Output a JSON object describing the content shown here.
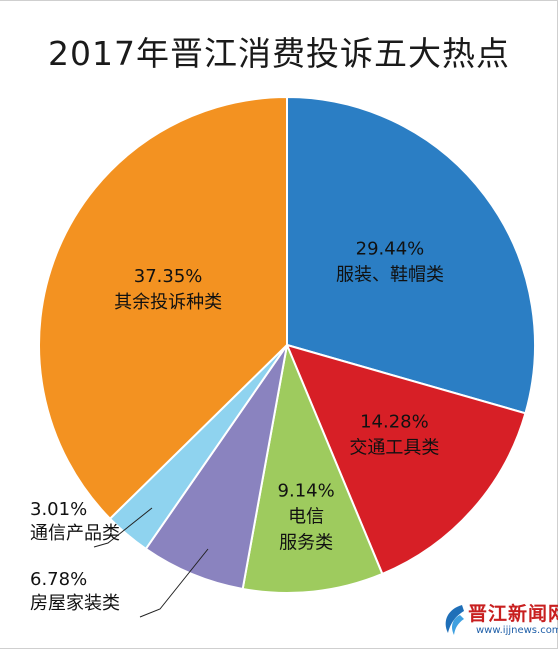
{
  "chart_data": {
    "type": "pie",
    "title": "2017年晋江消费投诉五大热点",
    "slices": [
      {
        "percent_label": "29.44%",
        "name_lines": [
          "服装、鞋帽类"
        ],
        "value": 29.44,
        "color": "#2b7ec4",
        "label_mode": "inside"
      },
      {
        "percent_label": "14.28%",
        "name_lines": [
          "交通工具类"
        ],
        "value": 14.28,
        "color": "#d71f26",
        "label_mode": "inside"
      },
      {
        "percent_label": "9.14%",
        "name_lines": [
          "电信",
          "服务类"
        ],
        "value": 9.14,
        "color": "#9ecb5e",
        "label_mode": "inside"
      },
      {
        "percent_label": "6.78%",
        "name_lines": [
          "房屋家装类"
        ],
        "value": 6.78,
        "color": "#8a83bf",
        "label_mode": "outside"
      },
      {
        "percent_label": "3.01%",
        "name_lines": [
          "通信产品类"
        ],
        "value": 3.01,
        "color": "#8fd3ef",
        "label_mode": "outside"
      },
      {
        "percent_label": "37.35%",
        "name_lines": [
          "其余投诉种类"
        ],
        "value": 37.35,
        "color": "#f39221",
        "label_mode": "inside"
      }
    ]
  },
  "watermark": {
    "name": "晋江新闻网",
    "url": "www.ijjnews.com"
  }
}
